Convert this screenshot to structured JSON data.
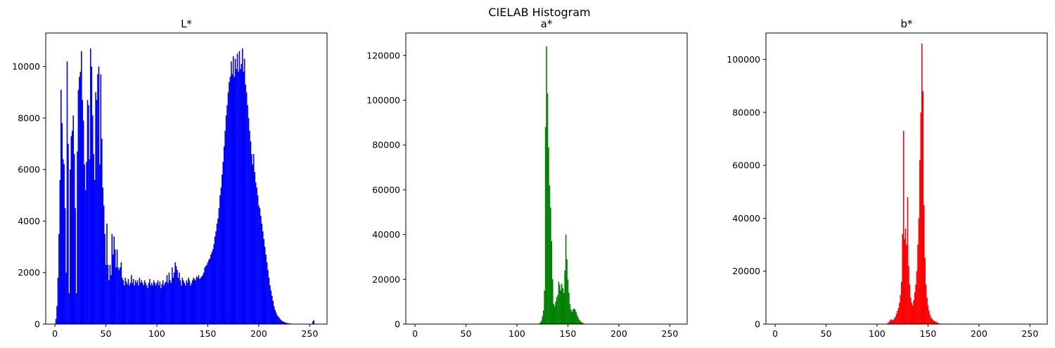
{
  "figure": {
    "suptitle": "CIELAB Histogram"
  },
  "chart_data": [
    {
      "type": "bar",
      "title": "L*",
      "color": "#0000ff",
      "xlabel": "",
      "ylabel": "",
      "xlim": [
        -9,
        267
      ],
      "ylim": [
        0,
        11300
      ],
      "xticks": [
        0,
        50,
        100,
        150,
        200,
        250
      ],
      "yticks": [
        0,
        2000,
        4000,
        6000,
        8000,
        10000
      ],
      "bins": [
        0,
        255
      ],
      "peaks": [
        [
          0,
          0
        ],
        [
          1,
          200
        ],
        [
          2,
          700
        ],
        [
          3,
          1800
        ],
        [
          4,
          3500
        ],
        [
          5,
          5600
        ],
        [
          6,
          9100
        ],
        [
          7,
          7800
        ],
        [
          8,
          6400
        ],
        [
          9,
          6200
        ],
        [
          10,
          4500
        ],
        [
          11,
          2000
        ],
        [
          12,
          10200
        ],
        [
          13,
          7000
        ],
        [
          14,
          1200
        ],
        [
          15,
          6000
        ],
        [
          16,
          7300
        ],
        [
          17,
          7500
        ],
        [
          18,
          8100
        ],
        [
          19,
          6600
        ],
        [
          20,
          4500
        ],
        [
          21,
          1200
        ],
        [
          22,
          6700
        ],
        [
          23,
          9100
        ],
        [
          24,
          9600
        ],
        [
          25,
          9800
        ],
        [
          26,
          10600
        ],
        [
          27,
          8700
        ],
        [
          28,
          7900
        ],
        [
          29,
          6200
        ],
        [
          30,
          5200
        ],
        [
          31,
          6300
        ],
        [
          32,
          8700
        ],
        [
          33,
          8500
        ],
        [
          34,
          6400
        ],
        [
          35,
          10700
        ],
        [
          36,
          10000
        ],
        [
          37,
          8100
        ],
        [
          38,
          6600
        ],
        [
          39,
          5600
        ],
        [
          40,
          9000
        ],
        [
          41,
          8700
        ],
        [
          42,
          9700
        ],
        [
          43,
          10000
        ],
        [
          44,
          6200
        ],
        [
          45,
          9700
        ],
        [
          46,
          7200
        ],
        [
          47,
          5300
        ],
        [
          48,
          4600
        ],
        [
          49,
          3500
        ],
        [
          50,
          2300
        ],
        [
          51,
          3900
        ],
        [
          52,
          2300
        ],
        [
          53,
          1700
        ],
        [
          54,
          2300
        ],
        [
          55,
          1900
        ],
        [
          56,
          3500
        ],
        [
          57,
          2700
        ],
        [
          58,
          3400
        ],
        [
          59,
          2900
        ],
        [
          60,
          2200
        ],
        [
          61,
          2900
        ],
        [
          62,
          2200
        ],
        [
          63,
          2100
        ],
        [
          64,
          2200
        ],
        [
          65,
          2400
        ],
        [
          66,
          1800
        ],
        [
          67,
          1700
        ],
        [
          68,
          1500
        ],
        [
          69,
          1800
        ],
        [
          70,
          1650
        ],
        [
          71,
          1550
        ],
        [
          72,
          1750
        ],
        [
          73,
          1500
        ],
        [
          74,
          1600
        ],
        [
          75,
          1900
        ],
        [
          76,
          1600
        ],
        [
          77,
          1750
        ],
        [
          78,
          1500
        ],
        [
          79,
          1700
        ],
        [
          80,
          1600
        ],
        [
          81,
          1700
        ],
        [
          82,
          1500
        ],
        [
          83,
          1800
        ],
        [
          84,
          1600
        ],
        [
          85,
          1700
        ],
        [
          86,
          1600
        ],
        [
          87,
          1500
        ],
        [
          88,
          1700
        ],
        [
          89,
          1600
        ],
        [
          90,
          1500
        ],
        [
          91,
          1400
        ],
        [
          92,
          1600
        ],
        [
          93,
          1750
        ],
        [
          94,
          1500
        ],
        [
          95,
          1600
        ],
        [
          96,
          1500
        ],
        [
          97,
          1700
        ],
        [
          98,
          1600
        ],
        [
          99,
          1500
        ],
        [
          100,
          1600
        ],
        [
          101,
          1700
        ],
        [
          102,
          1500
        ],
        [
          103,
          1650
        ],
        [
          104,
          1400
        ],
        [
          105,
          1550
        ],
        [
          106,
          1700
        ],
        [
          107,
          1500
        ],
        [
          108,
          1600
        ],
        [
          109,
          1650
        ],
        [
          110,
          1900
        ],
        [
          111,
          1600
        ],
        [
          112,
          2000
        ],
        [
          113,
          1700
        ],
        [
          114,
          1600
        ],
        [
          115,
          2200
        ],
        [
          116,
          1800
        ],
        [
          117,
          2000
        ],
        [
          118,
          2400
        ],
        [
          119,
          2250
        ],
        [
          120,
          2100
        ],
        [
          121,
          1800
        ],
        [
          122,
          2000
        ],
        [
          123,
          1700
        ],
        [
          124,
          1500
        ],
        [
          125,
          1800
        ],
        [
          126,
          1700
        ],
        [
          127,
          1600
        ],
        [
          128,
          1500
        ],
        [
          129,
          1700
        ],
        [
          130,
          1600
        ],
        [
          131,
          1800
        ],
        [
          132,
          1700
        ],
        [
          133,
          1500
        ],
        [
          134,
          1600
        ],
        [
          135,
          1700
        ],
        [
          136,
          1800
        ],
        [
          137,
          1750
        ],
        [
          138,
          1700
        ],
        [
          139,
          1850
        ],
        [
          140,
          1800
        ],
        [
          141,
          1900
        ],
        [
          142,
          1750
        ],
        [
          143,
          1800
        ],
        [
          144,
          1850
        ],
        [
          145,
          1900
        ],
        [
          146,
          2000
        ],
        [
          147,
          2200
        ],
        [
          148,
          2250
        ],
        [
          149,
          2300
        ],
        [
          150,
          2400
        ],
        [
          151,
          2500
        ],
        [
          152,
          2550
        ],
        [
          153,
          2700
        ],
        [
          154,
          2800
        ],
        [
          155,
          2900
        ],
        [
          156,
          3100
        ],
        [
          157,
          3400
        ],
        [
          158,
          3600
        ],
        [
          159,
          3900
        ],
        [
          160,
          4100
        ],
        [
          161,
          4500
        ],
        [
          162,
          5000
        ],
        [
          163,
          5300
        ],
        [
          164,
          5800
        ],
        [
          165,
          6300
        ],
        [
          166,
          6900
        ],
        [
          167,
          7500
        ],
        [
          168,
          8100
        ],
        [
          169,
          8500
        ],
        [
          170,
          9000
        ],
        [
          171,
          9400
        ],
        [
          172,
          9600
        ],
        [
          173,
          10200
        ],
        [
          174,
          9700
        ],
        [
          175,
          10400
        ],
        [
          176,
          9600
        ],
        [
          177,
          10300
        ],
        [
          178,
          9900
        ],
        [
          179,
          10500
        ],
        [
          180,
          9800
        ],
        [
          181,
          10600
        ],
        [
          182,
          9900
        ],
        [
          183,
          10100
        ],
        [
          184,
          10700
        ],
        [
          185,
          9800
        ],
        [
          186,
          10300
        ],
        [
          187,
          9300
        ],
        [
          188,
          9000
        ],
        [
          189,
          8500
        ],
        [
          190,
          8000
        ],
        [
          191,
          7500
        ],
        [
          192,
          7100
        ],
        [
          193,
          6600
        ],
        [
          194,
          6200
        ],
        [
          195,
          6600
        ],
        [
          196,
          5900
        ],
        [
          197,
          5500
        ],
        [
          198,
          5300
        ],
        [
          199,
          5000
        ],
        [
          200,
          4600
        ],
        [
          201,
          4500
        ],
        [
          202,
          4200
        ],
        [
          203,
          3900
        ],
        [
          204,
          3600
        ],
        [
          205,
          3300
        ],
        [
          206,
          3000
        ],
        [
          207,
          2700
        ],
        [
          208,
          2400
        ],
        [
          209,
          2100
        ],
        [
          210,
          1800
        ],
        [
          211,
          1500
        ],
        [
          212,
          1300
        ],
        [
          213,
          1100
        ],
        [
          214,
          900
        ],
        [
          215,
          700
        ],
        [
          216,
          550
        ],
        [
          217,
          450
        ],
        [
          218,
          350
        ],
        [
          219,
          300
        ],
        [
          220,
          250
        ],
        [
          221,
          200
        ],
        [
          222,
          150
        ],
        [
          223,
          120
        ],
        [
          224,
          100
        ],
        [
          225,
          80
        ],
        [
          226,
          60
        ],
        [
          227,
          50
        ],
        [
          228,
          40
        ],
        [
          229,
          30
        ],
        [
          230,
          25
        ],
        [
          231,
          20
        ],
        [
          232,
          15
        ],
        [
          233,
          10
        ],
        [
          240,
          5
        ],
        [
          250,
          0
        ],
        [
          252,
          0
        ],
        [
          253,
          100
        ],
        [
          254,
          150
        ],
        [
          255,
          0
        ]
      ]
    },
    {
      "type": "bar",
      "title": "a*",
      "color": "#008000",
      "xlabel": "",
      "ylabel": "",
      "xlim": [
        -9,
        267
      ],
      "ylim": [
        0,
        130000
      ],
      "xticks": [
        0,
        50,
        100,
        150,
        200,
        250
      ],
      "yticks": [
        0,
        20000,
        40000,
        60000,
        80000,
        100000,
        120000
      ],
      "bins": [
        0,
        255
      ],
      "peaks": [
        [
          0,
          0
        ],
        [
          118,
          0
        ],
        [
          122,
          300
        ],
        [
          123,
          800
        ],
        [
          124,
          1500
        ],
        [
          125,
          3500
        ],
        [
          126,
          6000
        ],
        [
          127,
          15000
        ],
        [
          128,
          88000
        ],
        [
          129,
          124000
        ],
        [
          130,
          103000
        ],
        [
          131,
          79000
        ],
        [
          132,
          62000
        ],
        [
          133,
          52000
        ],
        [
          134,
          37000
        ],
        [
          135,
          20000
        ],
        [
          136,
          9000
        ],
        [
          137,
          8000
        ],
        [
          138,
          10000
        ],
        [
          139,
          12000
        ],
        [
          140,
          13000
        ],
        [
          141,
          19000
        ],
        [
          142,
          17500
        ],
        [
          143,
          15000
        ],
        [
          144,
          18000
        ],
        [
          145,
          16000
        ],
        [
          146,
          14000
        ],
        [
          147,
          24000
        ],
        [
          148,
          40000
        ],
        [
          149,
          29000
        ],
        [
          150,
          20000
        ],
        [
          151,
          14000
        ],
        [
          152,
          9000
        ],
        [
          153,
          6500
        ],
        [
          154,
          5500
        ],
        [
          155,
          6500
        ],
        [
          156,
          7000
        ],
        [
          157,
          6500
        ],
        [
          158,
          5500
        ],
        [
          159,
          4000
        ],
        [
          160,
          3000
        ],
        [
          161,
          2000
        ],
        [
          162,
          1500
        ],
        [
          163,
          1000
        ],
        [
          164,
          700
        ],
        [
          165,
          400
        ],
        [
          166,
          250
        ],
        [
          167,
          150
        ],
        [
          170,
          0
        ],
        [
          255,
          0
        ]
      ]
    },
    {
      "type": "bar",
      "title": "b*",
      "color": "#ff0000",
      "xlabel": "",
      "ylabel": "",
      "xlim": [
        -9,
        267
      ],
      "ylim": [
        0,
        110000
      ],
      "xticks": [
        0,
        50,
        100,
        150,
        200,
        250
      ],
      "yticks": [
        0,
        20000,
        40000,
        60000,
        80000,
        100000
      ],
      "bins": [
        0,
        255
      ],
      "peaks": [
        [
          0,
          0
        ],
        [
          109,
          0
        ],
        [
          111,
          500
        ],
        [
          112,
          1000
        ],
        [
          113,
          1500
        ],
        [
          114,
          1800
        ],
        [
          115,
          1400
        ],
        [
          116,
          1600
        ],
        [
          117,
          2200
        ],
        [
          118,
          2800
        ],
        [
          119,
          3800
        ],
        [
          120,
          5000
        ],
        [
          121,
          6000
        ],
        [
          122,
          8000
        ],
        [
          123,
          11000
        ],
        [
          124,
          16000
        ],
        [
          125,
          34000
        ],
        [
          126,
          73000
        ],
        [
          127,
          32000
        ],
        [
          128,
          36000
        ],
        [
          129,
          30000
        ],
        [
          130,
          48000
        ],
        [
          131,
          22000
        ],
        [
          132,
          15000
        ],
        [
          133,
          10000
        ],
        [
          134,
          8000
        ],
        [
          135,
          7000
        ],
        [
          136,
          9000
        ],
        [
          137,
          12000
        ],
        [
          138,
          15000
        ],
        [
          139,
          20000
        ],
        [
          140,
          30000
        ],
        [
          141,
          40000
        ],
        [
          142,
          62000
        ],
        [
          143,
          80000
        ],
        [
          144,
          106000
        ],
        [
          145,
          88000
        ],
        [
          146,
          45000
        ],
        [
          147,
          25000
        ],
        [
          148,
          15000
        ],
        [
          149,
          10000
        ],
        [
          150,
          7000
        ],
        [
          151,
          5000
        ],
        [
          152,
          3500
        ],
        [
          153,
          2500
        ],
        [
          154,
          2000
        ],
        [
          155,
          1500
        ],
        [
          156,
          1200
        ],
        [
          157,
          1000
        ],
        [
          158,
          800
        ],
        [
          159,
          600
        ],
        [
          160,
          400
        ],
        [
          161,
          250
        ],
        [
          162,
          150
        ],
        [
          163,
          80
        ],
        [
          165,
          0
        ],
        [
          255,
          0
        ]
      ]
    }
  ]
}
